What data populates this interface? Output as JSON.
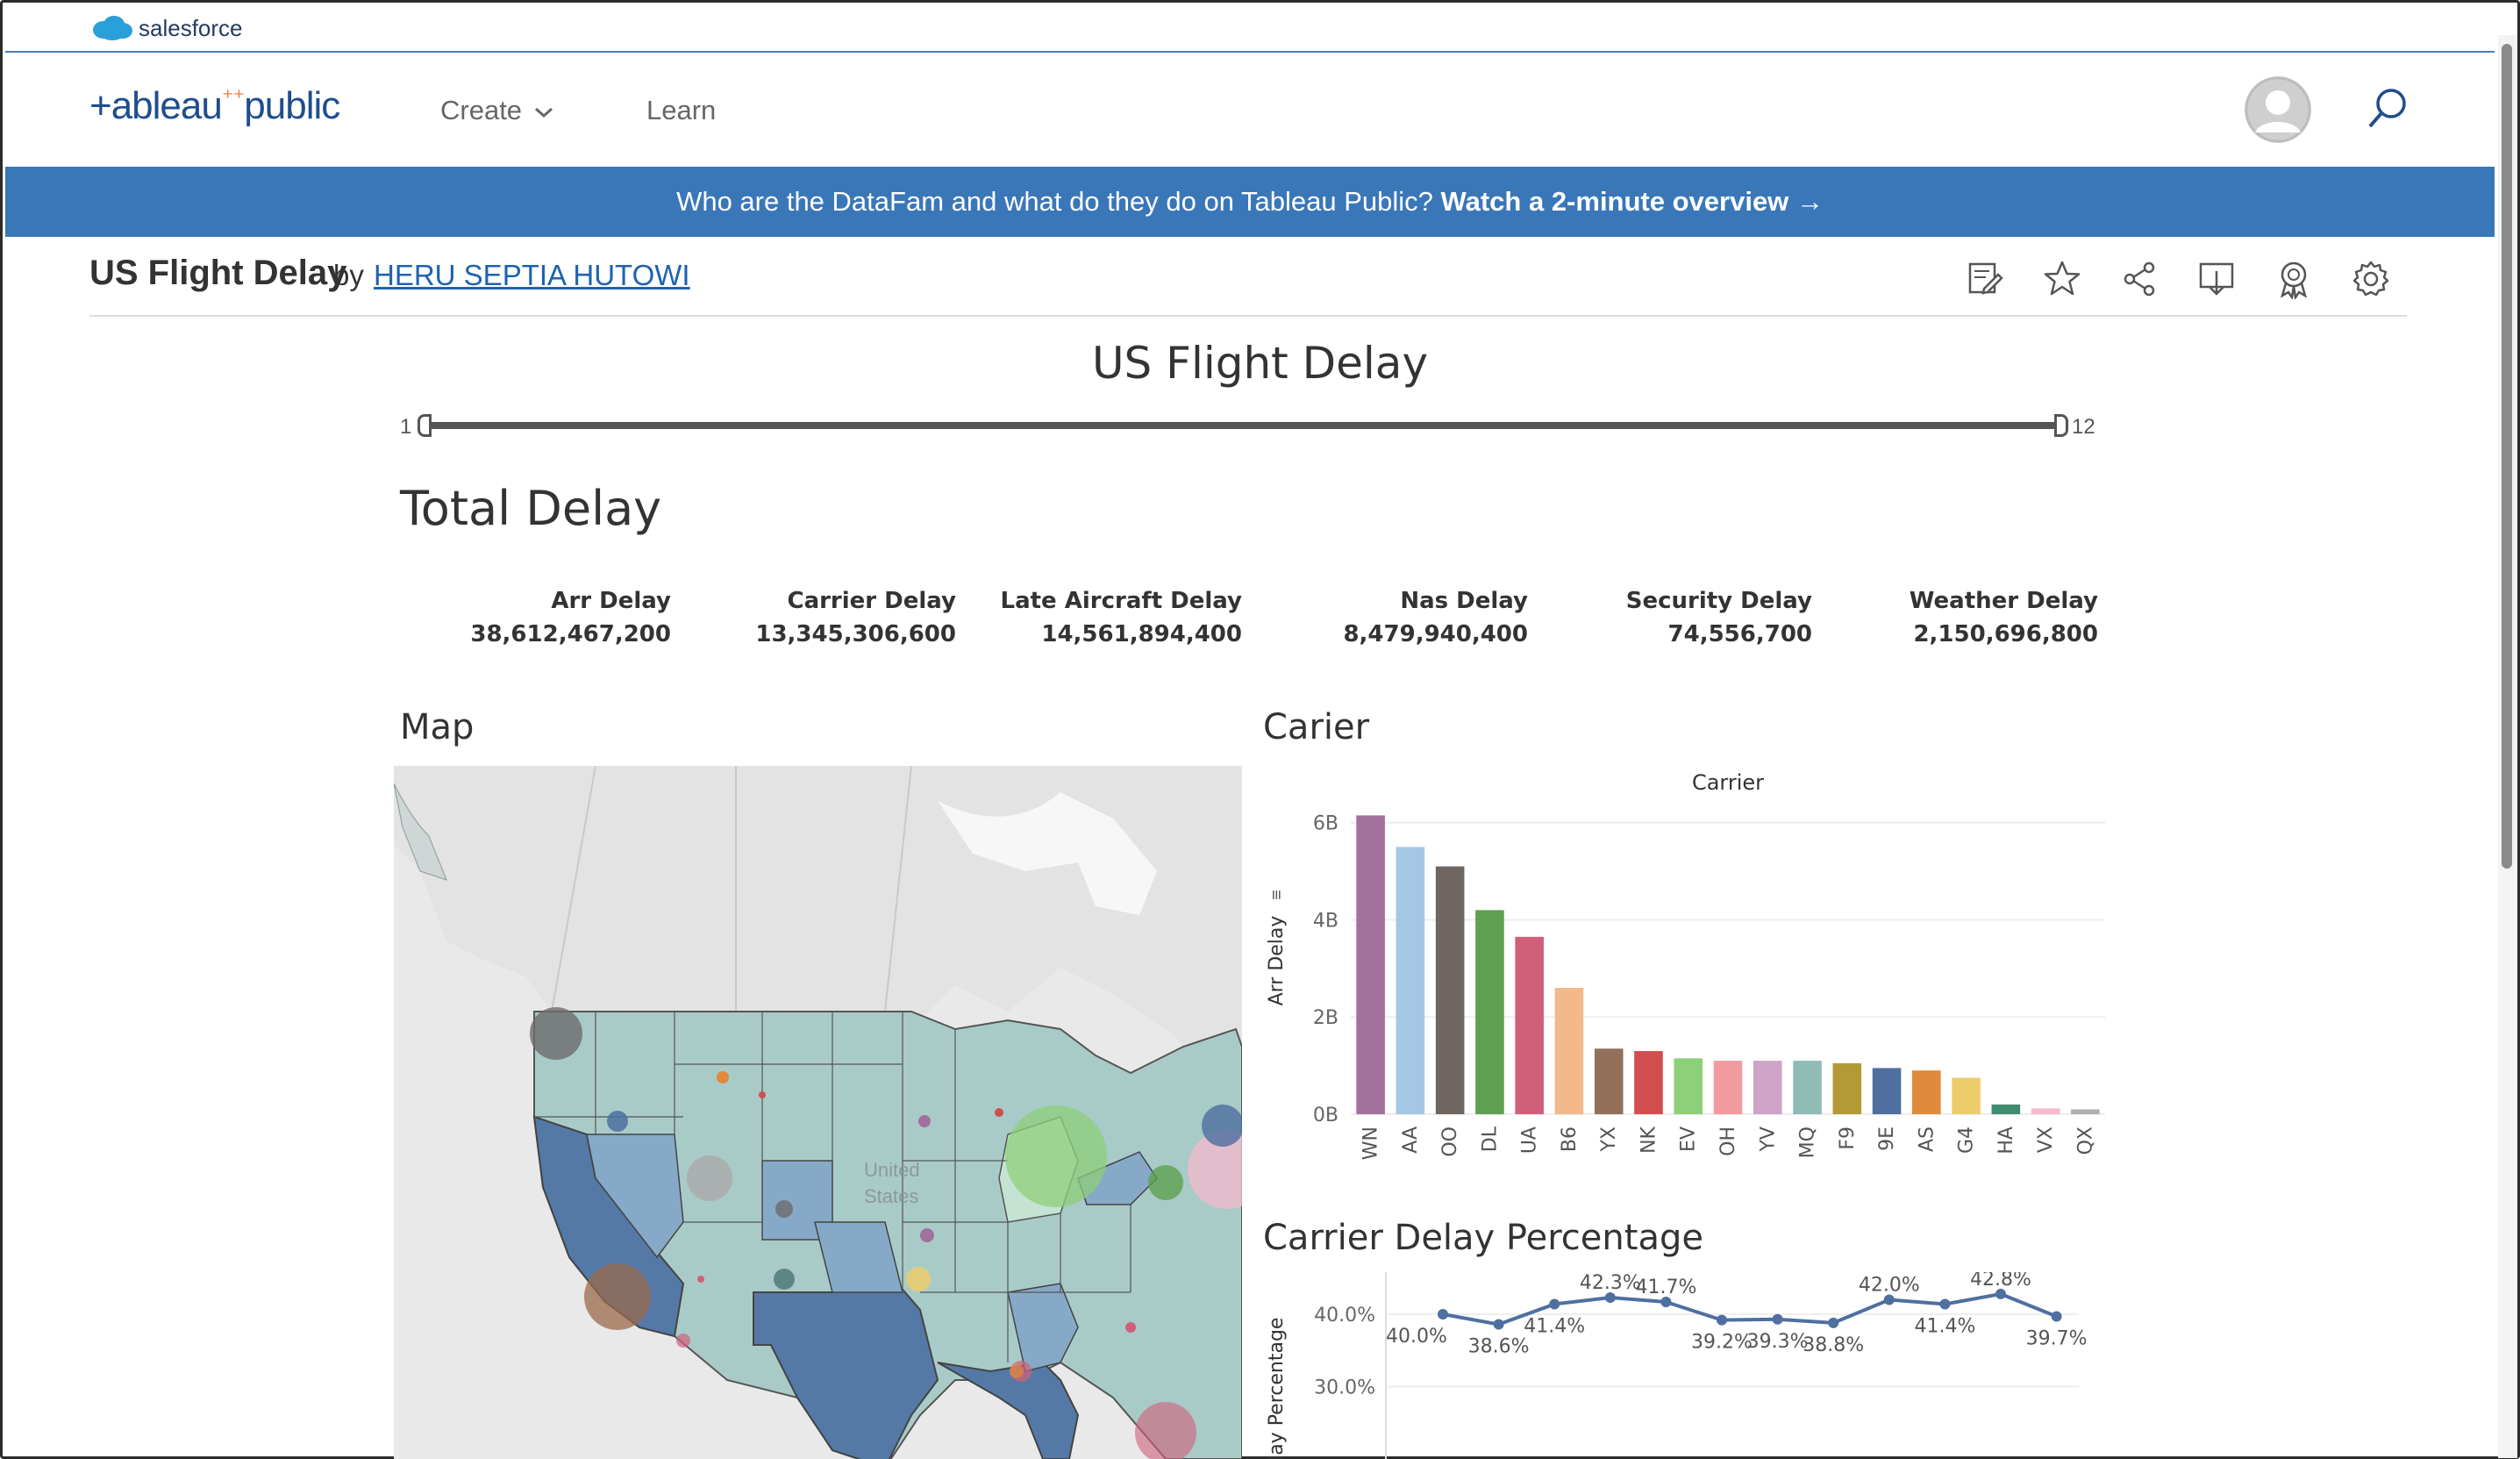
{
  "top_bar": {
    "brand": "salesforce"
  },
  "nav": {
    "logo": "+ableau",
    "logo_suffix": "public",
    "create": "Create",
    "learn": "Learn"
  },
  "banner": {
    "text": "Who are the DataFam and what do they do on Tableau Public?",
    "link": "Watch a 2-minute overview →"
  },
  "viz": {
    "name": "US Flight Delay",
    "by": "by",
    "author": "HERU SEPTIA HUTOWI"
  },
  "dashboard": {
    "title": "US Flight Delay",
    "slider": {
      "min": "1",
      "max": "12"
    },
    "total_title": "Total Delay",
    "kpis": [
      {
        "label": "Arr Delay",
        "value": "38,612,467,200"
      },
      {
        "label": "Carrier Delay",
        "value": "13,345,306,600"
      },
      {
        "label": "Late Aircraft Delay",
        "value": "14,561,894,400"
      },
      {
        "label": "Nas Delay",
        "value": "8,479,940,400"
      },
      {
        "label": "Security Delay",
        "value": "74,556,700"
      },
      {
        "label": "Weather Delay",
        "value": "2,150,696,800"
      }
    ],
    "map_title": "Map",
    "map_label": "United States",
    "carrier_title": "Carier",
    "pct_title": "Carrier Delay Percentage"
  },
  "chart_data": [
    {
      "type": "bar",
      "title": "Carrier",
      "ylabel": "Arr Delay",
      "categories": [
        "WN",
        "AA",
        "OO",
        "DL",
        "UA",
        "B6",
        "YX",
        "NK",
        "EV",
        "OH",
        "YV",
        "MQ",
        "F9",
        "9E",
        "AS",
        "G4",
        "HA",
        "VX",
        "QX"
      ],
      "values": [
        6.15,
        5.5,
        5.1,
        4.2,
        3.65,
        2.6,
        1.35,
        1.3,
        1.15,
        1.1,
        1.1,
        1.1,
        1.05,
        0.95,
        0.9,
        0.75,
        0.2,
        0.12,
        0.1
      ],
      "colors": [
        "#a2719c",
        "#a6c7e3",
        "#6f6662",
        "#5ea04f",
        "#d15f7a",
        "#f2b98b",
        "#93705a",
        "#d14d4e",
        "#8ecf79",
        "#f19b9e",
        "#cfa3c7",
        "#8fbdb6",
        "#b39a35",
        "#4f6f9e",
        "#e08a3c",
        "#edcd6b",
        "#3f8c6f",
        "#f5b9cd",
        "#b0b0b0"
      ],
      "yticks": [
        "0B",
        "2B",
        "4B",
        "6B"
      ],
      "ylim": [
        0,
        6.5
      ]
    },
    {
      "type": "line",
      "title": "Carrier Delay Percentage",
      "ylabel": "Carrier Delay Percentage",
      "ylabel_visible": "elay Percentage",
      "x": [
        1,
        2,
        3,
        4,
        5,
        6,
        7,
        8,
        9,
        10,
        11,
        12
      ],
      "values": [
        40.0,
        38.6,
        41.4,
        42.3,
        41.7,
        39.2,
        39.3,
        38.8,
        42.0,
        41.4,
        42.8,
        39.7
      ],
      "labels": [
        "40.0%",
        "38.6%",
        "41.4%",
        "42.3%",
        "41.7%",
        "39.2%",
        "39.3%",
        "38.8%",
        "42.0%",
        "41.4%",
        "42.8%",
        "39.7%"
      ],
      "yticks": [
        "30.0%",
        "40.0%"
      ],
      "color": "#4e6fa0"
    }
  ]
}
